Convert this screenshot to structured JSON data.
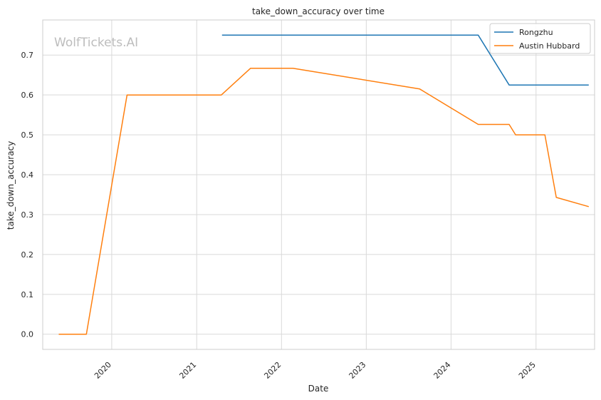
{
  "chart_data": {
    "type": "line",
    "title": "take_down_accuracy over time",
    "xlabel": "Date",
    "ylabel": "take_down_accuracy",
    "watermark": "WolfTickets.AI",
    "x_ticks": [
      "2020",
      "2021",
      "2022",
      "2023",
      "2024",
      "2025"
    ],
    "y_ticks": [
      "0.0",
      "0.1",
      "0.2",
      "0.3",
      "0.4",
      "0.5",
      "0.6",
      "0.7"
    ],
    "xlim": [
      "2019-03-10",
      "2025-09-10"
    ],
    "ylim": [
      -0.038,
      0.788
    ],
    "grid": true,
    "legend_position": "top-right",
    "series": [
      {
        "name": "Rongzhu",
        "color": "#1f77b4",
        "points": [
          {
            "x": "2021-04-20",
            "y": 0.75
          },
          {
            "x": "2024-04-27",
            "y": 0.75
          },
          {
            "x": "2024-09-07",
            "y": 0.625
          },
          {
            "x": "2025-08-16",
            "y": 0.625
          }
        ]
      },
      {
        "name": "Austin Hubbard",
        "color": "#ff7f0e",
        "points": [
          {
            "x": "2019-05-18",
            "y": 0.0
          },
          {
            "x": "2019-09-14",
            "y": 0.0
          },
          {
            "x": "2020-03-07",
            "y": 0.6
          },
          {
            "x": "2021-04-17",
            "y": 0.6
          },
          {
            "x": "2021-08-21",
            "y": 0.667
          },
          {
            "x": "2022-02-19",
            "y": 0.667
          },
          {
            "x": "2023-08-19",
            "y": 0.615
          },
          {
            "x": "2024-04-27",
            "y": 0.526
          },
          {
            "x": "2024-09-07",
            "y": 0.526
          },
          {
            "x": "2024-10-05",
            "y": 0.5
          },
          {
            "x": "2025-02-08",
            "y": 0.5
          },
          {
            "x": "2025-03-29",
            "y": 0.343
          },
          {
            "x": "2025-08-16",
            "y": 0.32
          }
        ]
      }
    ]
  }
}
